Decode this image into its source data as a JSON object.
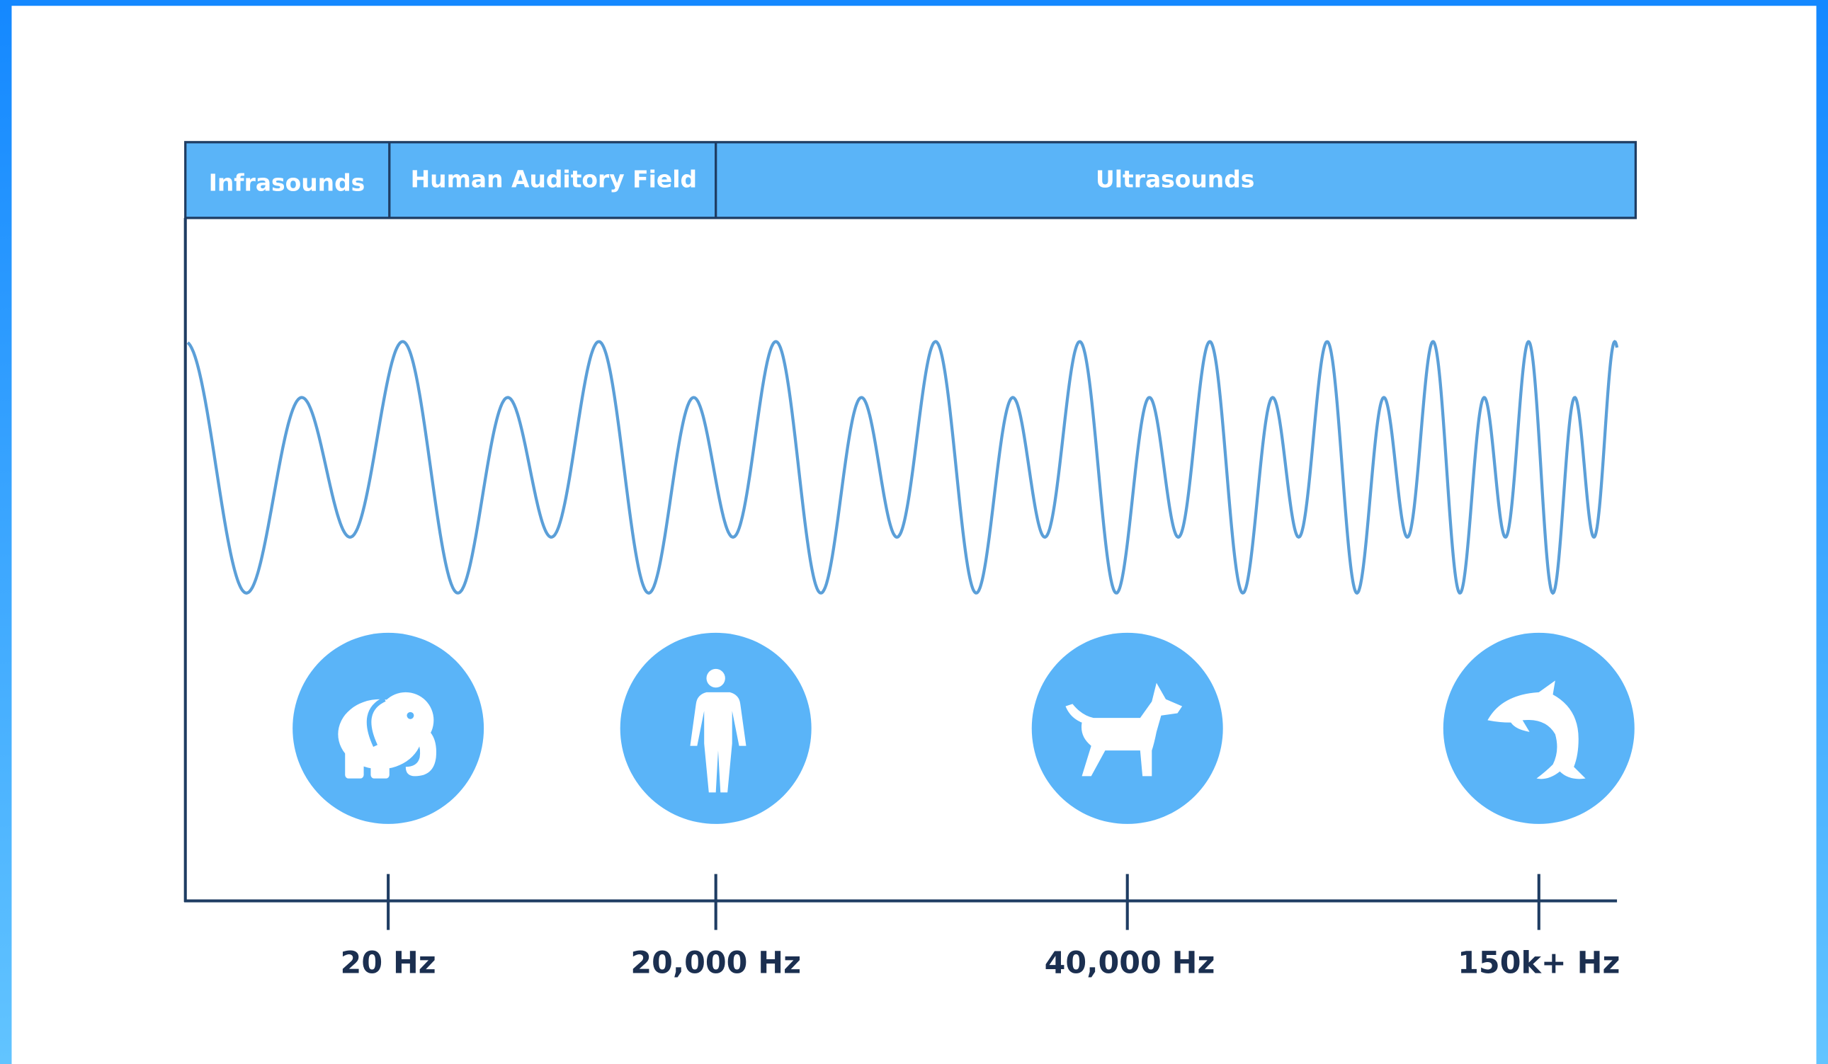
{
  "header": {
    "bands": [
      "Infrasounds",
      "Human Auditory Field",
      "Ultrasounds"
    ]
  },
  "axis": {
    "labels": [
      "20 Hz",
      "20,000 Hz",
      "40,000 Hz",
      "150k+ Hz"
    ]
  }
}
